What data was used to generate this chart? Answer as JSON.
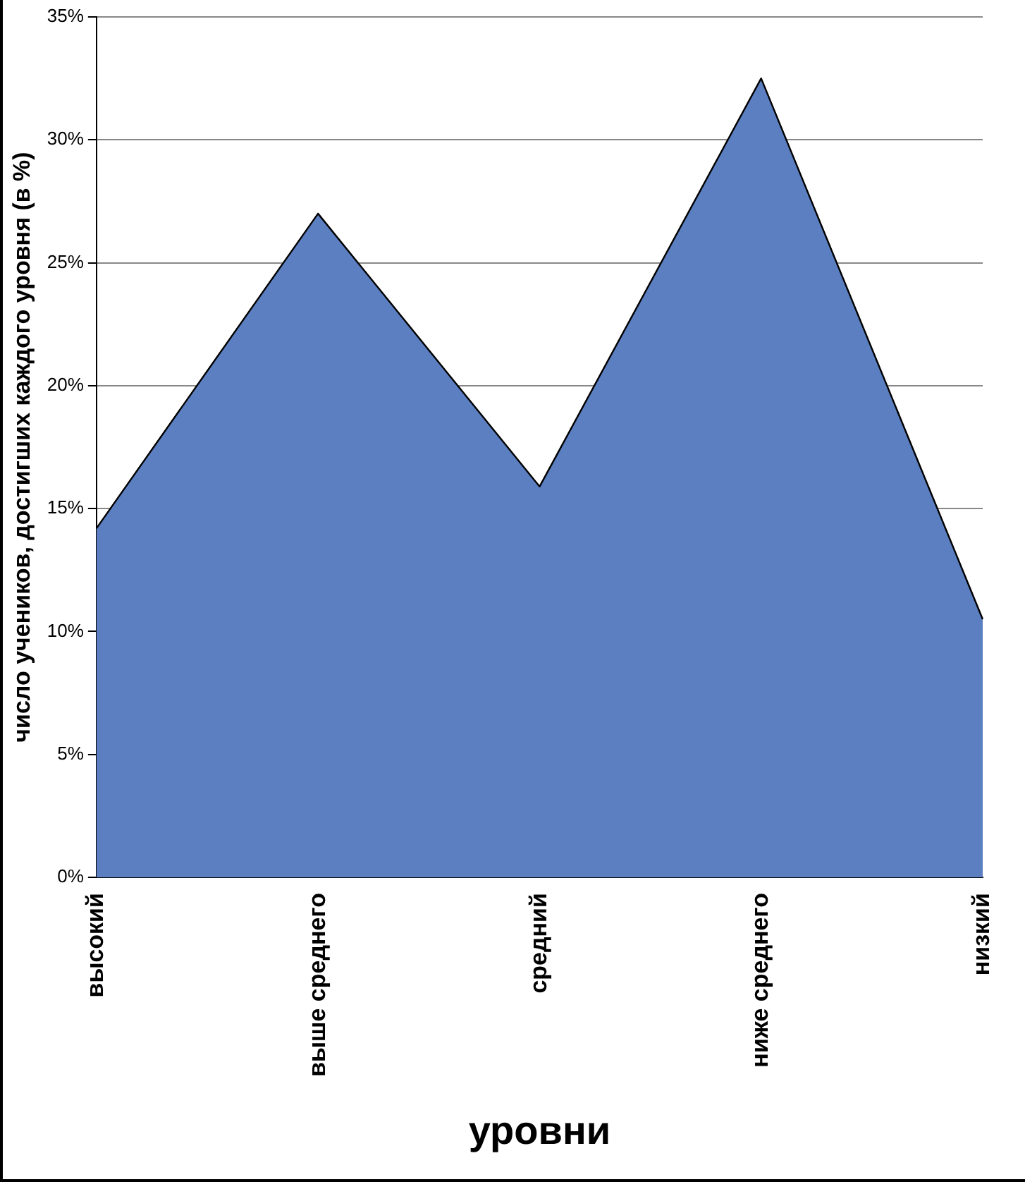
{
  "chart_data": {
    "type": "area",
    "xlabel": "уровни",
    "ylabel": "число учеников, достигших каждого уровня (в %)",
    "categories": [
      "высокий",
      "выше среднего",
      "средний",
      "ниже среднего",
      "низкий"
    ],
    "series": [
      {
        "color": "#5b7fc0",
        "values": [
          14.2,
          27.0,
          15.9,
          32.5,
          10.5
        ]
      }
    ],
    "ylim": [
      0,
      35
    ],
    "yticks": [
      {
        "value": 0,
        "label": "0%"
      },
      {
        "value": 5,
        "label": "5%"
      },
      {
        "value": 10,
        "label": "10%"
      },
      {
        "value": 15,
        "label": "15%"
      },
      {
        "value": 20,
        "label": "20%"
      },
      {
        "value": 25,
        "label": "25%"
      },
      {
        "value": 30,
        "label": "30%"
      },
      {
        "value": 35,
        "label": "35%"
      }
    ],
    "grid": "y",
    "legend": false,
    "marker": "none"
  }
}
